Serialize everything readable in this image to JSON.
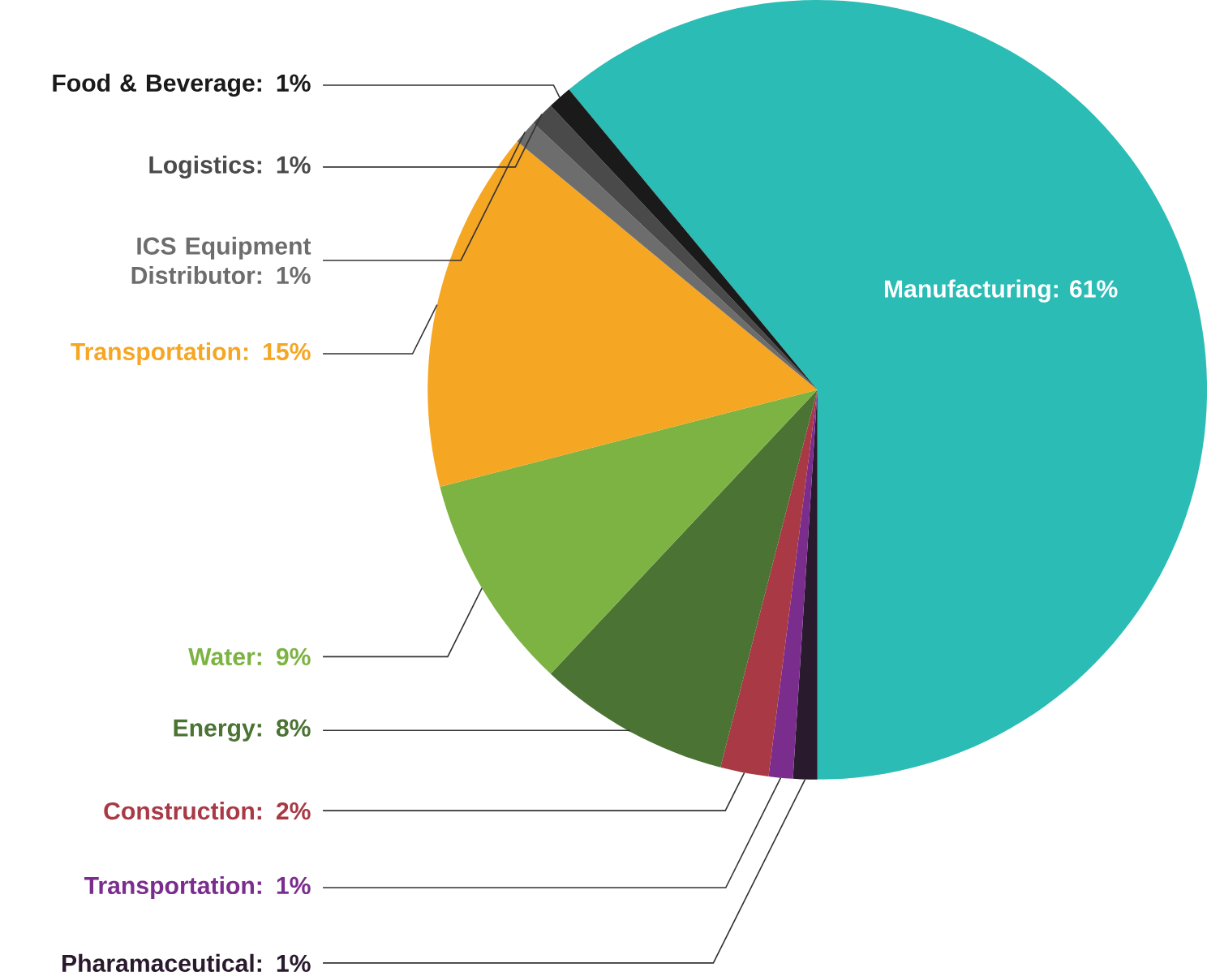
{
  "chart_data": {
    "type": "pie",
    "categories": [
      "Manufacturing",
      "Pharamaceutical",
      "Transportation",
      "Construction",
      "Energy",
      "Water",
      "Transportation",
      "ICS Equipment Distributor",
      "Logistics",
      "Food & Beverage"
    ],
    "values": [
      61,
      1,
      1,
      2,
      8,
      9,
      15,
      1,
      1,
      1
    ],
    "value_labels": [
      ": 61%",
      ": 1%",
      ": 1%",
      ": 2%",
      ": 8%",
      ": 9%",
      ": 15%",
      ": 1%",
      ": 1%",
      ": 1%"
    ],
    "colors": [
      "#2bbcb5",
      "#2a1a2e",
      "#7b2d8e",
      "#a83945",
      "#4b7334",
      "#7cb342",
      "#f5a623",
      "#6d6d6d",
      "#4a4a4a",
      "#1a1a1a"
    ]
  }
}
